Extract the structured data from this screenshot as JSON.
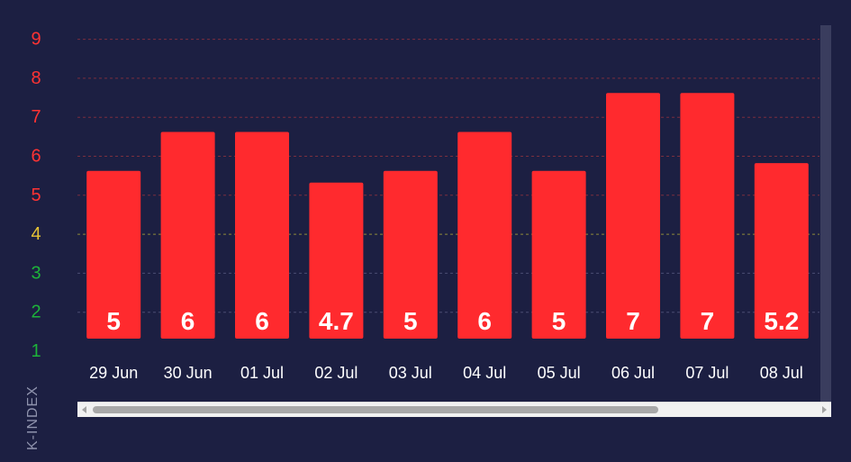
{
  "chart_data": {
    "type": "bar",
    "ylabel": "K-INDEX",
    "xlabel": "",
    "title": "",
    "categories": [
      "29 Jun",
      "30 Jun",
      "01 Jul",
      "02 Jul",
      "03 Jul",
      "04 Jul",
      "05 Jul",
      "06 Jul",
      "07 Jul",
      "08 Jul"
    ],
    "values": [
      5,
      6,
      6,
      4.7,
      5,
      6,
      5,
      7,
      7,
      5.2
    ],
    "ylim": [
      1,
      9
    ],
    "y_ticks": [
      "1",
      "2",
      "3",
      "4",
      "5",
      "6",
      "7",
      "8",
      "9"
    ],
    "y_tick_colors": [
      "#1db33a",
      "#1db33a",
      "#1db33a",
      "#e6c335",
      "#ff3333",
      "#ff3333",
      "#ff3333",
      "#ff3333",
      "#ff3333"
    ],
    "grid": true,
    "colors": {
      "bar": "#ff2a2e",
      "partial_bar": "#1db33a",
      "background": "#1c1f42",
      "grid_red": "#7a2f3e",
      "grid_yellow": "#8f8a3a",
      "grid_gray": "#4a4d72"
    }
  }
}
